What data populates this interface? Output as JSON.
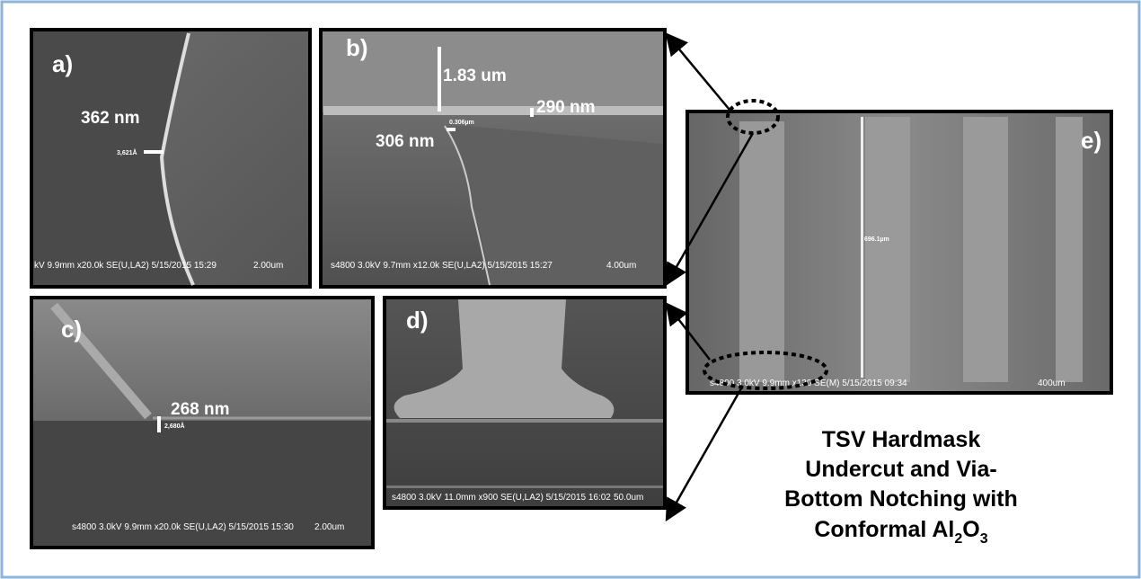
{
  "panel_a": {
    "label": "a)",
    "measure": "362 nm",
    "marker": "3,621Å",
    "info": "kV 9.9mm x20.0k SE(U,LA2) 5/15/2015 15:29",
    "scale": "2.00um"
  },
  "panel_b": {
    "label": "b)",
    "measure_height": "1.83 um",
    "measure_right": "290 nm",
    "measure_left": "306 nm",
    "marker": "0.306µm",
    "info": "s4800 3.0kV 9.7mm x12.0k SE(U,LA2) 5/15/2015 15:27",
    "scale": "4.00um"
  },
  "panel_c": {
    "label": "c)",
    "measure": "268 nm",
    "marker": "2,680Å",
    "info": "s4800 3.0kV 9.9mm x20.0k SE(U,LA2) 5/15/2015 15:30",
    "scale": "2.00um"
  },
  "panel_d": {
    "label": "d)",
    "info": "s4800 3.0kV 11.0mm x900 SE(U,LA2) 5/15/2015 16:02",
    "scale": "50.0um"
  },
  "panel_e": {
    "label": "e)",
    "marker": "696.1µm",
    "info": "s4800 3.0kV 9.9mm x130 SE(M) 5/15/2015 09:34",
    "scale": "400um"
  },
  "caption": {
    "lines": [
      "TSV Hardmask",
      "Undercut and Via-",
      "Bottom Notching with"
    ],
    "last_line": [
      "Conformal Al",
      "2",
      "O",
      "3"
    ]
  }
}
